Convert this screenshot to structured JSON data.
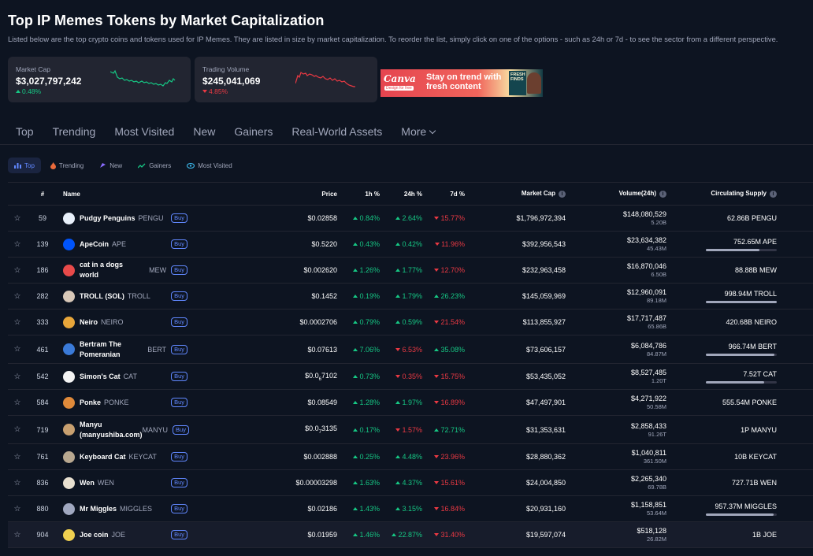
{
  "page": {
    "title": "Top IP Memes Tokens by Market Capitalization",
    "description": "Listed below are the top crypto coins and tokens used for IP Memes. They are listed in size by market capitalization. To reorder the list, simply click on one of the options - such as 24h or 7d - to see the sector from a different perspective."
  },
  "stats": {
    "market_cap": {
      "label": "Market Cap",
      "value": "$3,027,797,242",
      "change": "0.48%",
      "direction": "up"
    },
    "trading_volume": {
      "label": "Trading Volume",
      "value": "$245,041,069",
      "change": "4.85%",
      "direction": "down"
    }
  },
  "ad": {
    "logo": "Canva",
    "logo_sub": "Design for free",
    "tagline": "Stay on trend with fresh content",
    "badge": "FRESH FINDS"
  },
  "tabs": [
    "Top",
    "Trending",
    "Most Visited",
    "New",
    "Gainers",
    "Real-World Assets",
    "More"
  ],
  "filters": [
    {
      "label": "Top",
      "icon": "bar-chart-icon",
      "active": true
    },
    {
      "label": "Trending",
      "icon": "flame-icon",
      "active": false
    },
    {
      "label": "New",
      "icon": "new-icon",
      "active": false
    },
    {
      "label": "Gainers",
      "icon": "trend-up-icon",
      "active": false
    },
    {
      "label": "Most Visited",
      "icon": "eye-icon",
      "active": false
    }
  ],
  "table": {
    "headers": {
      "rank": "#",
      "name": "Name",
      "price": "Price",
      "h1": "1h %",
      "h24": "24h %",
      "d7": "7d %",
      "market_cap": "Market Cap",
      "volume": "Volume(24h)",
      "supply": "Circulating Supply"
    },
    "buy_label": "Buy",
    "rows": [
      {
        "rank": "59",
        "name": "Pudgy Penguins",
        "symbol": "PENGU",
        "price": "$0.02858",
        "h1": "0.84%",
        "h1_dir": "up",
        "h24": "2.64%",
        "h24_dir": "up",
        "d7": "15.77%",
        "d7_dir": "down",
        "market_cap": "$1,796,972,394",
        "volume": "$148,080,529",
        "volume_sub": "5.20B",
        "supply": "62.86B PENGU",
        "supply_frac": null,
        "icon_color": "#e8f0fa"
      },
      {
        "rank": "139",
        "name": "ApeCoin",
        "symbol": "APE",
        "price": "$0.5220",
        "h1": "0.43%",
        "h1_dir": "up",
        "h24": "0.42%",
        "h24_dir": "up",
        "d7": "11.96%",
        "d7_dir": "down",
        "market_cap": "$392,956,543",
        "volume": "$23,634,382",
        "volume_sub": "45.43M",
        "supply": "752.65M APE",
        "supply_frac": 0.75,
        "icon_color": "#0054fa"
      },
      {
        "rank": "186",
        "name": "cat in a dogs world",
        "symbol": "MEW",
        "price": "$0.002620",
        "h1": "1.26%",
        "h1_dir": "up",
        "h24": "1.77%",
        "h24_dir": "up",
        "d7": "12.70%",
        "d7_dir": "down",
        "market_cap": "$232,963,458",
        "volume": "$16,870,046",
        "volume_sub": "6.50B",
        "supply": "88.88B MEW",
        "supply_frac": null,
        "icon_color": "#e84a4a"
      },
      {
        "rank": "282",
        "name": "TROLL (SOL)",
        "symbol": "TROLL",
        "price": "$0.1452",
        "h1": "0.19%",
        "h1_dir": "up",
        "h24": "1.79%",
        "h24_dir": "up",
        "d7": "26.23%",
        "d7_dir": "up",
        "market_cap": "$145,059,969",
        "volume": "$12,960,091",
        "volume_sub": "89.18M",
        "supply": "998.94M TROLL",
        "supply_frac": 0.999,
        "icon_color": "#d8c8b8"
      },
      {
        "rank": "333",
        "name": "Neiro",
        "symbol": "NEIRO",
        "price": "$0.0002706",
        "h1": "0.79%",
        "h1_dir": "up",
        "h24": "0.59%",
        "h24_dir": "up",
        "d7": "21.54%",
        "d7_dir": "down",
        "market_cap": "$113,855,927",
        "volume": "$17,717,487",
        "volume_sub": "65.86B",
        "supply": "420.68B NEIRO",
        "supply_frac": null,
        "icon_color": "#e8a63a"
      },
      {
        "rank": "461",
        "name": "Bertram The Pomeranian",
        "symbol": "BERT",
        "price": "$0.07613",
        "h1": "7.06%",
        "h1_dir": "up",
        "h24": "6.53%",
        "h24_dir": "down",
        "d7": "35.08%",
        "d7_dir": "up",
        "market_cap": "$73,606,157",
        "volume": "$6,084,786",
        "volume_sub": "84.87M",
        "supply": "966.74M BERT",
        "supply_frac": 0.97,
        "icon_color": "#3a7ad8"
      },
      {
        "rank": "542",
        "name": "Simon's Cat",
        "symbol": "CAT",
        "price_main": "$0.0",
        "price_sub": "6",
        "price_tail": "7102",
        "h1": "0.73%",
        "h1_dir": "up",
        "h24": "0.35%",
        "h24_dir": "down",
        "d7": "15.75%",
        "d7_dir": "down",
        "market_cap": "$53,435,052",
        "volume": "$8,527,485",
        "volume_sub": "1.20T",
        "supply": "7.52T CAT",
        "supply_frac": 0.82,
        "icon_color": "#f4f4f4"
      },
      {
        "rank": "584",
        "name": "Ponke",
        "symbol": "PONKE",
        "price": "$0.08549",
        "h1": "1.28%",
        "h1_dir": "up",
        "h24": "1.97%",
        "h24_dir": "up",
        "d7": "16.89%",
        "d7_dir": "down",
        "market_cap": "$47,497,901",
        "volume": "$4,271,922",
        "volume_sub": "50.58M",
        "supply": "555.54M PONKE",
        "supply_frac": null,
        "icon_color": "#e08a3a"
      },
      {
        "rank": "719",
        "name": "Manyu (manyushiba.com)",
        "symbol": "MANYU",
        "price_main": "$0.0",
        "price_sub": "7",
        "price_tail": "3135",
        "h1": "0.17%",
        "h1_dir": "up",
        "h24": "1.57%",
        "h24_dir": "down",
        "d7": "72.71%",
        "d7_dir": "up",
        "market_cap": "$31,353,631",
        "volume": "$2,858,433",
        "volume_sub": "91.26T",
        "supply": "1P MANYU",
        "supply_frac": null,
        "icon_color": "#c8a070"
      },
      {
        "rank": "761",
        "name": "Keyboard Cat",
        "symbol": "KEYCAT",
        "price": "$0.002888",
        "h1": "0.25%",
        "h1_dir": "up",
        "h24": "4.48%",
        "h24_dir": "up",
        "d7": "23.96%",
        "d7_dir": "down",
        "market_cap": "$28,880,362",
        "volume": "$1,040,811",
        "volume_sub": "361.50M",
        "supply": "10B KEYCAT",
        "supply_frac": null,
        "icon_color": "#b8a890"
      },
      {
        "rank": "836",
        "name": "Wen",
        "symbol": "WEN",
        "price": "$0.00003298",
        "h1": "1.63%",
        "h1_dir": "up",
        "h24": "4.37%",
        "h24_dir": "up",
        "d7": "15.61%",
        "d7_dir": "down",
        "market_cap": "$24,004,850",
        "volume": "$2,265,340",
        "volume_sub": "69.78B",
        "supply": "727.71B WEN",
        "supply_frac": null,
        "icon_color": "#e8e0d0"
      },
      {
        "rank": "880",
        "name": "Mr Miggles",
        "symbol": "MIGGLES",
        "price": "$0.02186",
        "h1": "1.43%",
        "h1_dir": "up",
        "h24": "3.15%",
        "h24_dir": "up",
        "d7": "16.84%",
        "d7_dir": "down",
        "market_cap": "$20,931,160",
        "volume": "$1,158,851",
        "volume_sub": "53.64M",
        "supply": "957.37M MIGGLES",
        "supply_frac": 0.96,
        "icon_color": "#a0a8c0"
      },
      {
        "rank": "904",
        "name": "Joe coin",
        "symbol": "JOE",
        "price": "$0.01959",
        "h1": "1.46%",
        "h1_dir": "up",
        "h24": "22.87%",
        "h24_dir": "up",
        "d7": "31.40%",
        "d7_dir": "down",
        "market_cap": "$19,597,074",
        "volume": "$518,128",
        "volume_sub": "26.82M",
        "supply": "1B JOE",
        "supply_frac": null,
        "icon_color": "#f0d050"
      }
    ]
  }
}
